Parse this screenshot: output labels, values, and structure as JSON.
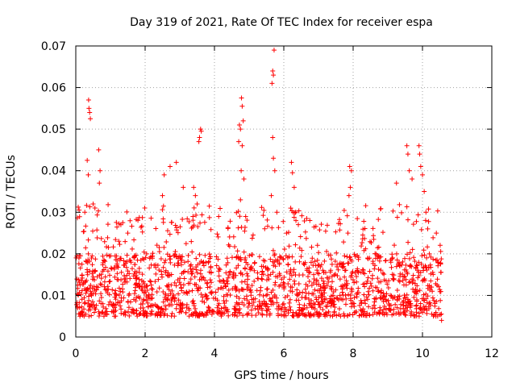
{
  "chart_data": {
    "type": "scatter",
    "title": "Day 319 of 2021, Rate Of TEC Index for receiver espa",
    "xlabel": "GPS time / hours",
    "ylabel": "ROTI / TECUs",
    "xlim": [
      0,
      12
    ],
    "ylim": [
      0,
      0.07
    ],
    "x_ticks": [
      "0",
      "2",
      "4",
      "6",
      "8",
      "10",
      "12"
    ],
    "x_tick_values": [
      0,
      2,
      4,
      6,
      8,
      10,
      12
    ],
    "y_ticks": [
      "0",
      "0.01",
      "0.02",
      "0.03",
      "0.04",
      "0.05",
      "0.06",
      "0.07"
    ],
    "y_tick_values": [
      0,
      0.01,
      0.02,
      0.03,
      0.04,
      0.05,
      0.06,
      0.07
    ],
    "grid": true,
    "marker": "plus",
    "color": "#ff0000",
    "series": [
      {
        "name": "ROTI",
        "x_range_hours": [
          0,
          10.55
        ],
        "typical_band": [
          0.005,
          0.02
        ],
        "highlighted_points": [
          {
            "x": 0.37,
            "y": 0.057
          },
          {
            "x": 0.38,
            "y": 0.055
          },
          {
            "x": 0.4,
            "y": 0.054
          },
          {
            "x": 0.42,
            "y": 0.0525
          },
          {
            "x": 0.33,
            "y": 0.0425
          },
          {
            "x": 0.36,
            "y": 0.039
          },
          {
            "x": 0.66,
            "y": 0.045
          },
          {
            "x": 0.7,
            "y": 0.04
          },
          {
            "x": 0.68,
            "y": 0.037
          },
          {
            "x": 0.5,
            "y": 0.032
          },
          {
            "x": 0.26,
            "y": 0.03
          },
          {
            "x": 1.3,
            "y": 0.027
          },
          {
            "x": 1.5,
            "y": 0.025
          },
          {
            "x": 2.55,
            "y": 0.039
          },
          {
            "x": 2.72,
            "y": 0.041
          },
          {
            "x": 2.9,
            "y": 0.042
          },
          {
            "x": 2.5,
            "y": 0.034
          },
          {
            "x": 3.1,
            "y": 0.036
          },
          {
            "x": 3.6,
            "y": 0.05
          },
          {
            "x": 3.62,
            "y": 0.0495
          },
          {
            "x": 3.57,
            "y": 0.048
          },
          {
            "x": 3.55,
            "y": 0.047
          },
          {
            "x": 3.4,
            "y": 0.036
          },
          {
            "x": 3.45,
            "y": 0.034
          },
          {
            "x": 3.5,
            "y": 0.032
          },
          {
            "x": 4.78,
            "y": 0.0575
          },
          {
            "x": 4.8,
            "y": 0.0555
          },
          {
            "x": 4.72,
            "y": 0.051
          },
          {
            "x": 4.75,
            "y": 0.05
          },
          {
            "x": 4.83,
            "y": 0.052
          },
          {
            "x": 4.7,
            "y": 0.047
          },
          {
            "x": 4.8,
            "y": 0.046
          },
          {
            "x": 4.77,
            "y": 0.04
          },
          {
            "x": 4.85,
            "y": 0.038
          },
          {
            "x": 4.75,
            "y": 0.033
          },
          {
            "x": 4.9,
            "y": 0.029
          },
          {
            "x": 5.72,
            "y": 0.069
          },
          {
            "x": 5.68,
            "y": 0.064
          },
          {
            "x": 5.7,
            "y": 0.063
          },
          {
            "x": 5.66,
            "y": 0.061
          },
          {
            "x": 5.68,
            "y": 0.048
          },
          {
            "x": 5.7,
            "y": 0.043
          },
          {
            "x": 5.74,
            "y": 0.04
          },
          {
            "x": 5.64,
            "y": 0.034
          },
          {
            "x": 5.8,
            "y": 0.03
          },
          {
            "x": 6.22,
            "y": 0.042
          },
          {
            "x": 6.25,
            "y": 0.0395
          },
          {
            "x": 6.3,
            "y": 0.036
          },
          {
            "x": 6.2,
            "y": 0.031
          },
          {
            "x": 6.35,
            "y": 0.028
          },
          {
            "x": 7.9,
            "y": 0.041
          },
          {
            "x": 7.95,
            "y": 0.04
          },
          {
            "x": 7.92,
            "y": 0.036
          },
          {
            "x": 7.88,
            "y": 0.034
          },
          {
            "x": 7.85,
            "y": 0.025
          },
          {
            "x": 9.25,
            "y": 0.037
          },
          {
            "x": 9.55,
            "y": 0.046
          },
          {
            "x": 9.58,
            "y": 0.044
          },
          {
            "x": 9.62,
            "y": 0.04
          },
          {
            "x": 9.7,
            "y": 0.038
          },
          {
            "x": 9.9,
            "y": 0.046
          },
          {
            "x": 9.92,
            "y": 0.044
          },
          {
            "x": 9.95,
            "y": 0.041
          },
          {
            "x": 10.0,
            "y": 0.039
          },
          {
            "x": 10.05,
            "y": 0.035
          },
          {
            "x": 10.1,
            "y": 0.03
          },
          {
            "x": 10.15,
            "y": 0.026
          },
          {
            "x": 10.2,
            "y": 0.02
          },
          {
            "x": 10.4,
            "y": 0.025
          },
          {
            "x": 10.55,
            "y": 0.004
          }
        ]
      }
    ]
  }
}
